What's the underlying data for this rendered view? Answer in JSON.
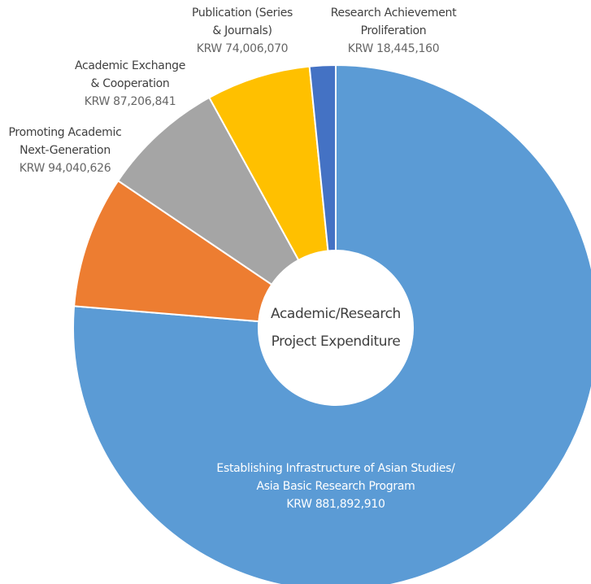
{
  "chart_data": {
    "type": "donut",
    "title": "Academic/Research Project Expenditure",
    "categories": [
      "Establishing Infrastructure of Asian Studies/\nAsia Basic Research Program",
      "Promoting Academic\nNext-Generation",
      "Academic Exchange\n& Cooperation",
      "Publication (Series\n& Journals)",
      "Research Achievement\nProliferation"
    ],
    "values": [
      881892910,
      94040626,
      87206841,
      74006070,
      18445160
    ],
    "value_labels": [
      "KRW 881,892,910",
      "KRW 94,040,626",
      "KRW 87,206,841",
      "KRW 74,006,070",
      "KRW 18,445,160"
    ],
    "colors": [
      "#5b9bd5",
      "#ed7d31",
      "#a5a5a5",
      "#ffc000",
      "#4472c4"
    ]
  }
}
